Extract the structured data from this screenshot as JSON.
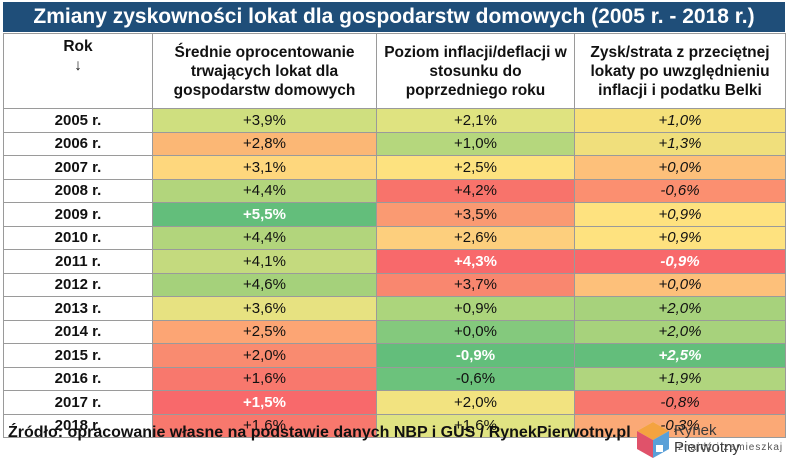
{
  "chart_data": {
    "type": "table",
    "title": "Zmiany zyskowności lokat dla gospodarstw domowych (2005 r. - 2018 r.)",
    "columns": [
      "Rok\n↓",
      "Średnie oprocentowanie trwających lokat dla gospodarstw domowych",
      "Poziom inflacji/deflacji w stosunku do poprzedniego roku",
      "Zysk/strata z przeciętnej lokaty po uwzględnieniu inflacji i podatku Belki"
    ],
    "rows": [
      {
        "year": "2005 r.",
        "rate": "+3,9%",
        "inflation": "+2,1%",
        "real": "+1,0%",
        "colors": [
          "#cfdf7f",
          "#dfe380",
          "#f5e07a"
        ]
      },
      {
        "year": "2006 r.",
        "rate": "+2,8%",
        "inflation": "+1,0%",
        "real": "+1,3%",
        "colors": [
          "#fbb775",
          "#b5d77d",
          "#f0df7c"
        ]
      },
      {
        "year": "2007 r.",
        "rate": "+3,1%",
        "inflation": "+2,5%",
        "real": "+0,0%",
        "colors": [
          "#fed77d",
          "#fde27f",
          "#fdc07a"
        ]
      },
      {
        "year": "2008 r.",
        "rate": "+4,4%",
        "inflation": "+4,2%",
        "real": "-0,6%",
        "colors": [
          "#b2d57c",
          "#f8736b",
          "#fb8f70"
        ]
      },
      {
        "year": "2009 r.",
        "rate": "+5,5%",
        "inflation": "+3,5%",
        "real": "+0,9%",
        "colors": [
          "#63be7b",
          "#fa9a72",
          "#fee27f"
        ],
        "white": [
          true,
          false,
          false
        ]
      },
      {
        "year": "2010 r.",
        "rate": "+4,4%",
        "inflation": "+2,6%",
        "real": "+0,9%",
        "colors": [
          "#b2d57c",
          "#fdcf7d",
          "#fee27f"
        ]
      },
      {
        "year": "2011 r.",
        "rate": "+4,1%",
        "inflation": "+4,3%",
        "real": "-0,9%",
        "colors": [
          "#c4da7e",
          "#f8696b",
          "#f8696b"
        ],
        "white": [
          false,
          true,
          true
        ]
      },
      {
        "year": "2012 r.",
        "rate": "+4,6%",
        "inflation": "+3,7%",
        "real": "+0,0%",
        "colors": [
          "#a5d17b",
          "#f9876f",
          "#fdc07a"
        ]
      },
      {
        "year": "2013 r.",
        "rate": "+3,6%",
        "inflation": "+0,9%",
        "real": "+2,0%",
        "colors": [
          "#e7e281",
          "#acd57c",
          "#a7d27c"
        ]
      },
      {
        "year": "2014 r.",
        "rate": "+2,5%",
        "inflation": "+0,0%",
        "real": "+2,0%",
        "colors": [
          "#fca574",
          "#84c97d",
          "#a7d27c"
        ]
      },
      {
        "year": "2015 r.",
        "rate": "+2,0%",
        "inflation": "-0,9%",
        "real": "+2,5%",
        "colors": [
          "#f98b70",
          "#63be7b",
          "#63be7b"
        ],
        "white": [
          false,
          true,
          true
        ]
      },
      {
        "year": "2016 r.",
        "rate": "+1,6%",
        "inflation": "-0,6%",
        "real": "+1,9%",
        "colors": [
          "#f8786d",
          "#6cc27c",
          "#b0d57e"
        ]
      },
      {
        "year": "2017 r.",
        "rate": "+1,5%",
        "inflation": "+2,0%",
        "real": "-0,8%",
        "colors": [
          "#f8696b",
          "#f2e380",
          "#f8786d"
        ],
        "white": [
          true,
          false,
          false
        ]
      },
      {
        "year": "2018 r.",
        "rate": "+1,6%",
        "inflation": "+1,6%",
        "real": "-0,3%",
        "colors": [
          "#f8786d",
          "#e0e382",
          "#fba976"
        ]
      }
    ]
  },
  "source": "Źródło: opracowanie własne na podstawie danych NBP i GUS / RynekPierwotny.pl",
  "logo": {
    "name": "Rynek Pierwotny",
    "tagline": "znajdź i zamieszkaj"
  }
}
